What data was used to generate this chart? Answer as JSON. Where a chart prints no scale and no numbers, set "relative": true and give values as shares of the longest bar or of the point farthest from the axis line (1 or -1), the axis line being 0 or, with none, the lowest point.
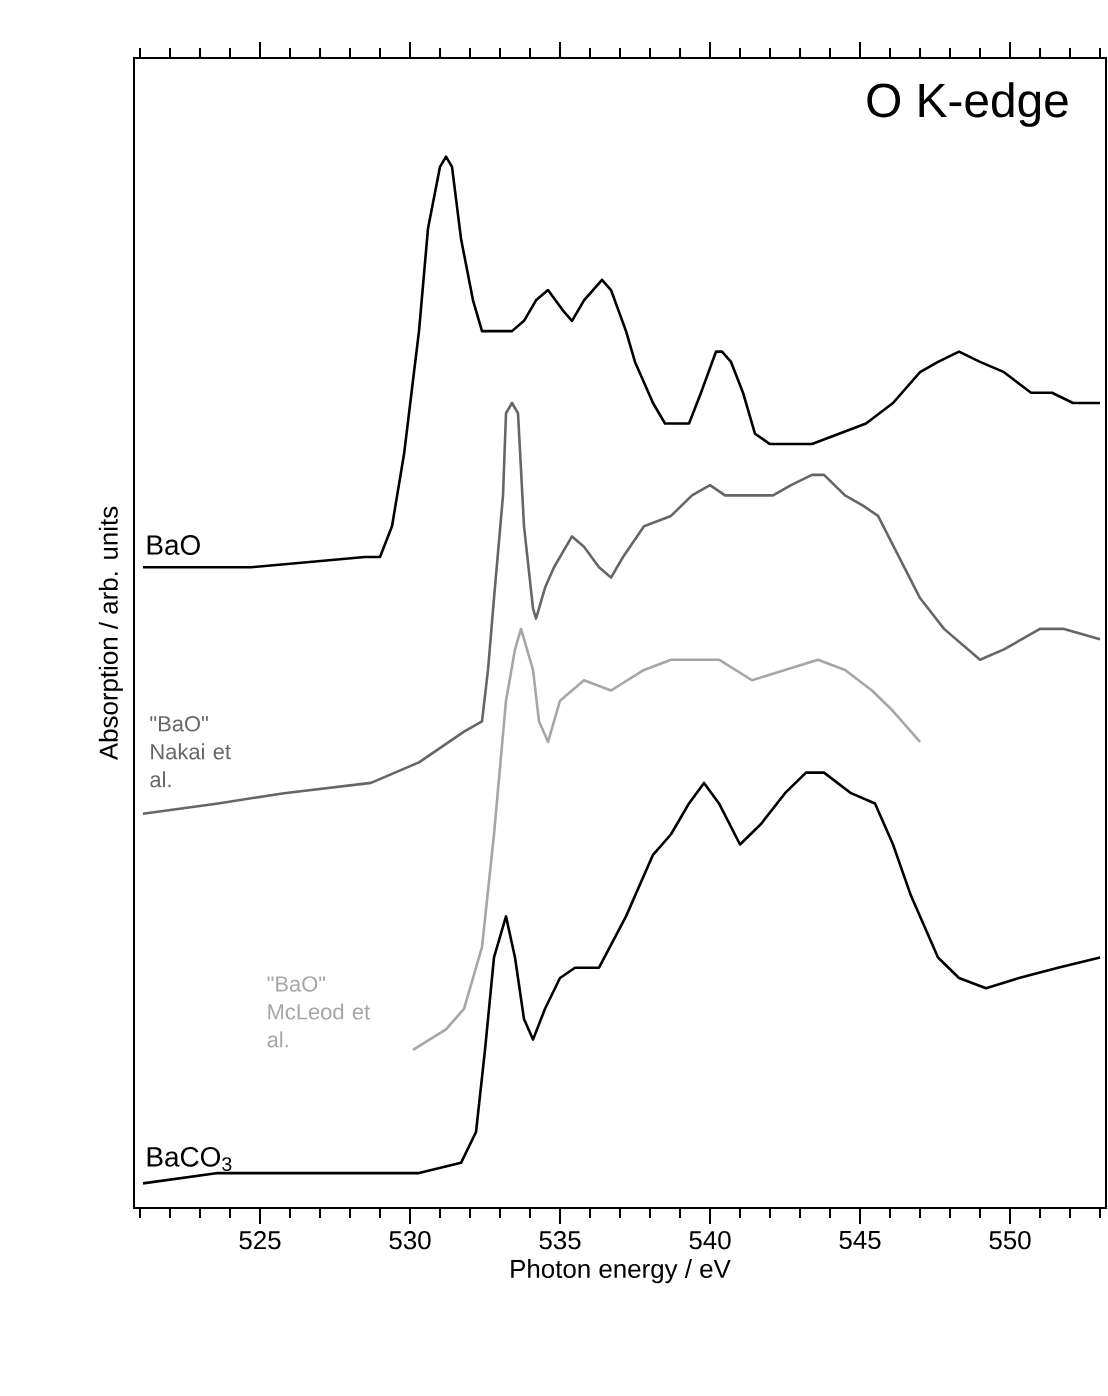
{
  "chart_data": {
    "type": "line",
    "title": "O K-edge",
    "xlabel": "Photon energy / eV",
    "ylabel": "Absorption / arb. units",
    "relative": true,
    "xlim": [
      520.8,
      553.2
    ],
    "xticks": [
      525,
      530,
      535,
      540,
      545,
      550
    ],
    "series": [
      {
        "name": "BaO",
        "color": "#000000",
        "x": [
          521.1,
          524.7,
          528.5,
          529.0,
          529.4,
          529.8,
          530.3,
          530.6,
          531.0,
          531.2,
          531.4,
          531.7,
          532.1,
          532.4,
          533.0,
          533.4,
          533.8,
          534.2,
          534.6,
          535.1,
          535.4,
          535.8,
          536.4,
          536.7,
          537.2,
          537.5,
          538.1,
          538.5,
          539.0,
          539.3,
          539.7,
          540.2,
          540.4,
          540.7,
          541.1,
          541.5,
          542.0,
          542.5,
          543.4,
          544.3,
          545.2,
          546.1,
          547.0,
          547.6,
          548.3,
          549.0,
          549.8,
          550.7,
          551.4,
          552.1,
          553.0
        ],
        "values": [
          0.6,
          0.6,
          0.61,
          0.61,
          0.64,
          0.71,
          0.83,
          0.93,
          0.99,
          1.0,
          0.99,
          0.92,
          0.86,
          0.83,
          0.83,
          0.83,
          0.84,
          0.86,
          0.87,
          0.85,
          0.84,
          0.86,
          0.88,
          0.87,
          0.83,
          0.8,
          0.76,
          0.74,
          0.74,
          0.74,
          0.77,
          0.81,
          0.81,
          0.8,
          0.77,
          0.73,
          0.72,
          0.72,
          0.72,
          0.73,
          0.74,
          0.76,
          0.79,
          0.8,
          0.81,
          0.8,
          0.79,
          0.77,
          0.77,
          0.76,
          0.76
        ]
      },
      {
        "name": "\"BaO\" Nakai et al.",
        "color": "#666666",
        "x": [
          521.1,
          523.6,
          525.8,
          528.7,
          530.3,
          531.8,
          532.4,
          532.6,
          532.8,
          533.1,
          533.2,
          533.4,
          533.6,
          533.8,
          534.1,
          534.2,
          534.5,
          534.8,
          535.4,
          535.8,
          536.3,
          536.7,
          537.1,
          537.8,
          538.7,
          539.4,
          540.0,
          540.5,
          541.2,
          542.1,
          542.7,
          543.4,
          543.8,
          544.5,
          545.1,
          545.6,
          546.3,
          547.0,
          547.8,
          549.0,
          549.8,
          551.0,
          551.8,
          553.0
        ],
        "values": [
          0.36,
          0.37,
          0.38,
          0.39,
          0.41,
          0.44,
          0.45,
          0.5,
          0.57,
          0.67,
          0.75,
          0.76,
          0.75,
          0.64,
          0.56,
          0.55,
          0.58,
          0.6,
          0.63,
          0.62,
          0.6,
          0.59,
          0.61,
          0.64,
          0.65,
          0.67,
          0.68,
          0.67,
          0.67,
          0.67,
          0.68,
          0.69,
          0.69,
          0.67,
          0.66,
          0.65,
          0.61,
          0.57,
          0.54,
          0.51,
          0.52,
          0.54,
          0.54,
          0.53
        ]
      },
      {
        "name": "\"BaO\" McLeod et al.",
        "color": "#a6a6a6",
        "x": [
          530.1,
          531.2,
          531.8,
          532.4,
          532.8,
          533.2,
          533.5,
          533.7,
          534.1,
          534.3,
          534.6,
          535.0,
          535.8,
          536.7,
          537.8,
          538.7,
          539.6,
          540.3,
          541.4,
          542.5,
          543.6,
          544.5,
          545.4,
          546.1,
          547.0
        ],
        "values": [
          0.13,
          0.15,
          0.17,
          0.23,
          0.34,
          0.47,
          0.52,
          0.54,
          0.5,
          0.45,
          0.43,
          0.47,
          0.49,
          0.48,
          0.5,
          0.51,
          0.51,
          0.51,
          0.49,
          0.5,
          0.51,
          0.5,
          0.48,
          0.46,
          0.43
        ]
      },
      {
        "name": "BaCO$_{3}$",
        "color": "#000000",
        "x": [
          521.1,
          523.6,
          527.0,
          530.3,
          531.7,
          532.2,
          532.5,
          532.8,
          533.2,
          533.5,
          533.8,
          534.1,
          534.5,
          535.0,
          535.5,
          536.3,
          537.2,
          538.1,
          538.7,
          539.3,
          539.8,
          540.3,
          541.0,
          541.7,
          542.5,
          543.2,
          543.8,
          544.7,
          545.5,
          546.1,
          546.7,
          547.6,
          548.3,
          549.2,
          550.3,
          551.6,
          553.0
        ],
        "values": [
          0.0,
          0.01,
          0.01,
          0.01,
          0.02,
          0.05,
          0.13,
          0.22,
          0.26,
          0.22,
          0.16,
          0.14,
          0.17,
          0.2,
          0.21,
          0.21,
          0.26,
          0.32,
          0.34,
          0.37,
          0.39,
          0.37,
          0.33,
          0.35,
          0.38,
          0.4,
          0.4,
          0.38,
          0.37,
          0.33,
          0.28,
          0.22,
          0.2,
          0.19,
          0.2,
          0.21,
          0.22
        ]
      }
    ]
  }
}
